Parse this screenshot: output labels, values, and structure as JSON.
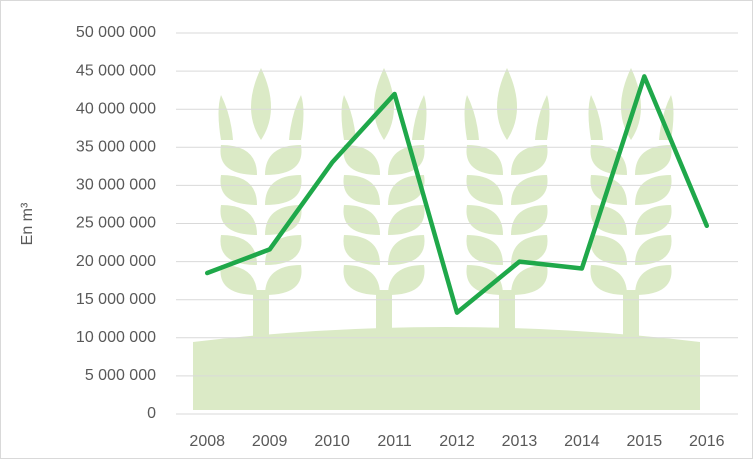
{
  "chart_data": {
    "type": "line",
    "y_label": "En m³",
    "categories": [
      "2008",
      "2009",
      "2010",
      "2011",
      "2012",
      "2013",
      "2014",
      "2015",
      "2016"
    ],
    "values": [
      18500000,
      21600000,
      33000000,
      42000000,
      13300000,
      20000000,
      19100000,
      44300000,
      24700000
    ],
    "color": "#1fa84a",
    "ylim": [
      0,
      50000000
    ],
    "yticks": [
      0,
      {
        "value": 5000000,
        "label": "5 000 000"
      },
      {
        "value": 10000000,
        "label": "10 000 000"
      },
      {
        "value": 15000000,
        "label": "15 000 000"
      },
      {
        "value": 20000000,
        "label": "20 000 000"
      },
      {
        "value": 25000000,
        "label": "25 000 000"
      },
      {
        "value": 30000000,
        "label": "30 000 000"
      },
      {
        "value": 35000000,
        "label": "35 000 000"
      },
      {
        "value": 40000000,
        "label": "40 000 000"
      },
      {
        "value": 45000000,
        "label": "45 000 000"
      },
      {
        "value": 50000000,
        "label": "50 000 000"
      }
    ],
    "grid": true
  }
}
